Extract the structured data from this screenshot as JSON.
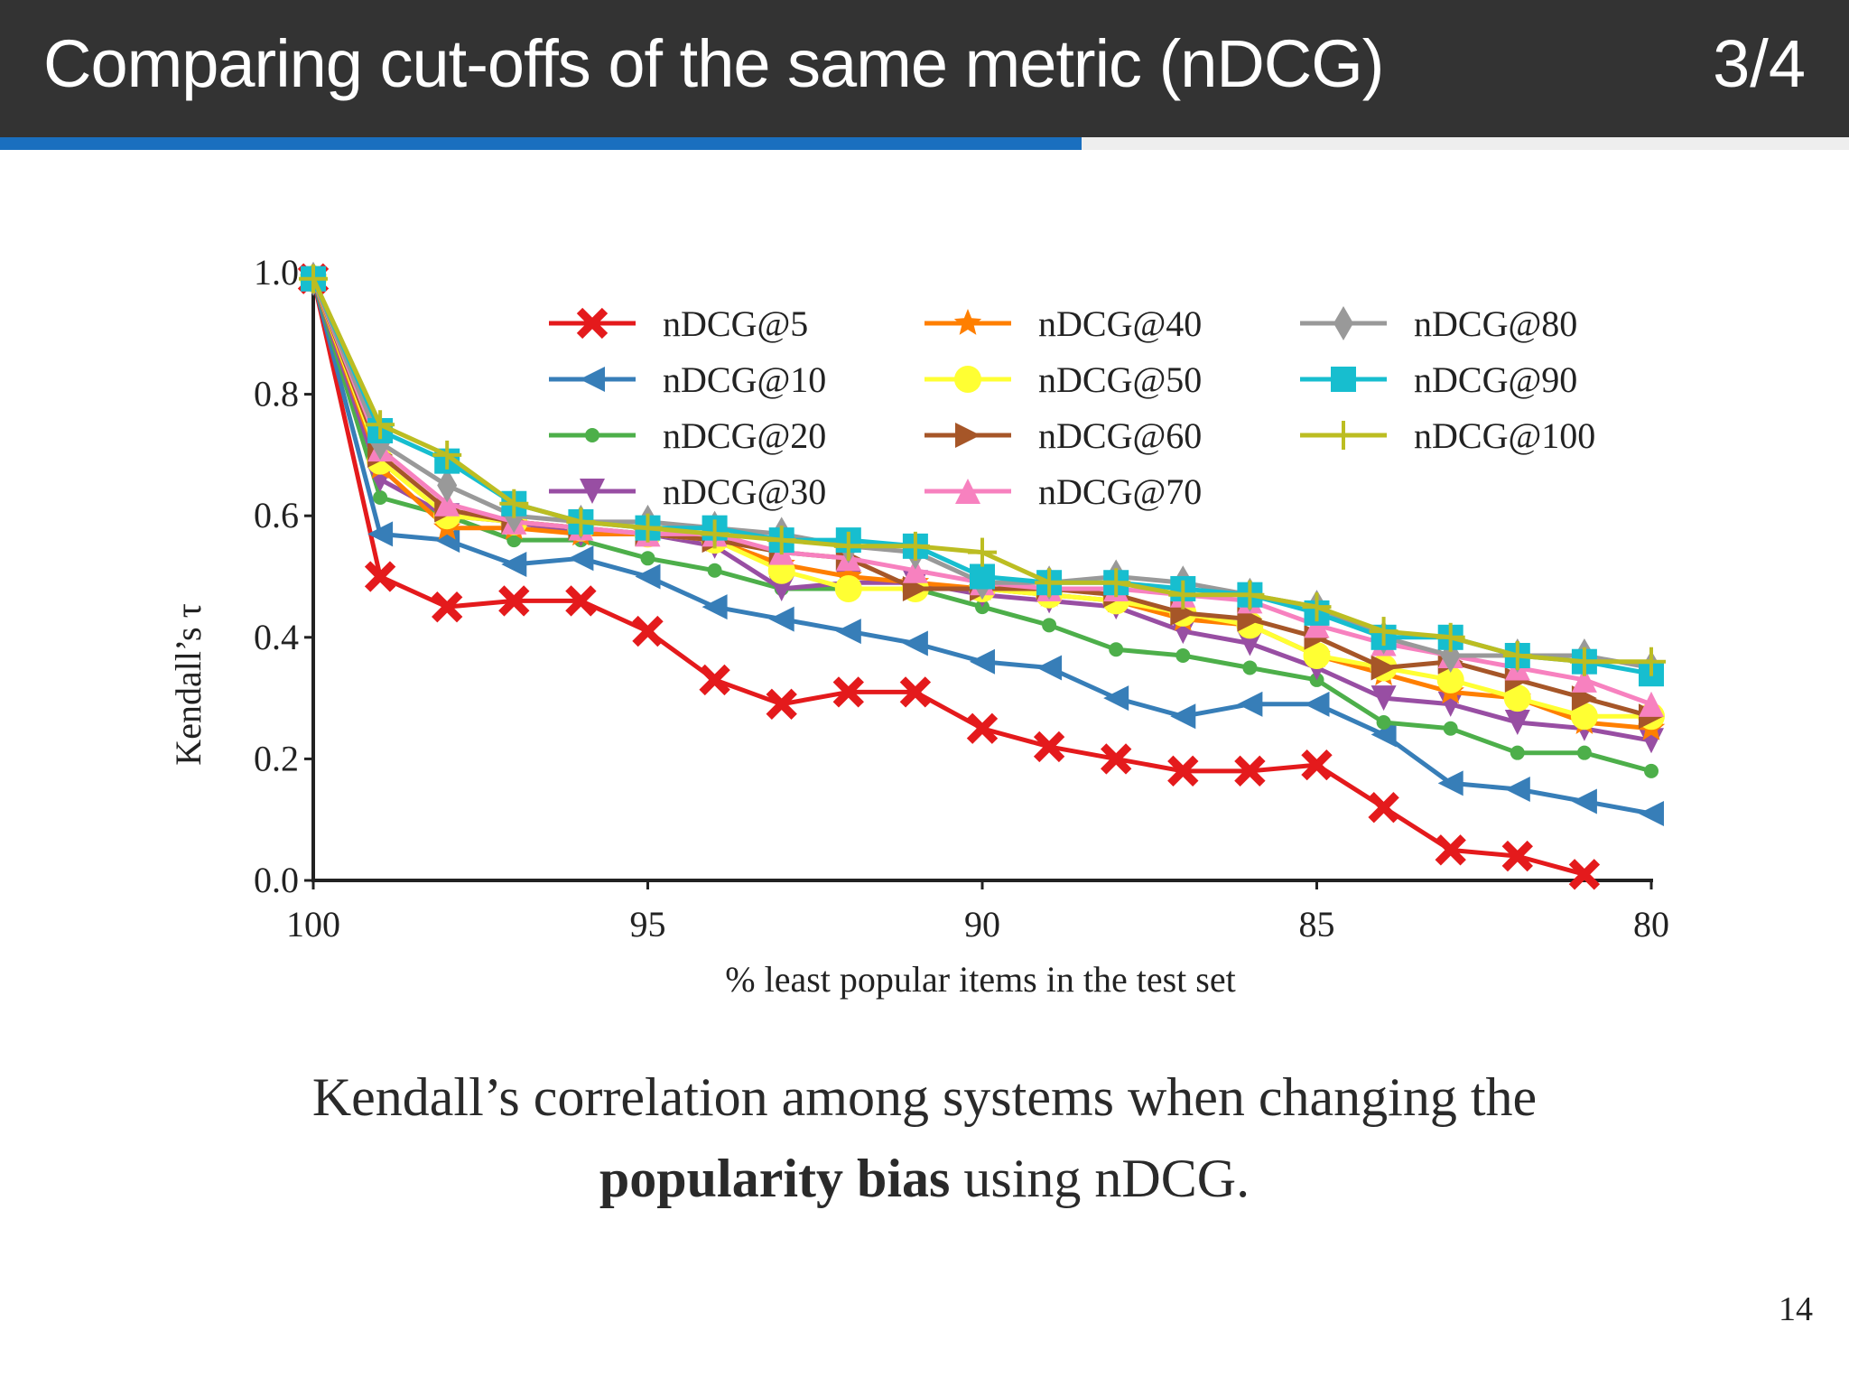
{
  "slide": {
    "title": "Comparing cut-offs of the same metric (nDCG)",
    "counter": "3/4",
    "progress_fraction": 0.585,
    "progress_color": "#1a6fbf",
    "header_bg": "#333333",
    "page_number": "14"
  },
  "caption": {
    "line1": "Kendall’s correlation among systems when changing the",
    "bold": "popularity bias",
    "rest": " using nDCG."
  },
  "chart_data": {
    "type": "line",
    "xlabel": "% least popular items in the test set",
    "ylabel": "Kendall’s τ",
    "xlim": [
      100,
      80
    ],
    "ylim": [
      0,
      1.0
    ],
    "xticks": [
      100,
      95,
      90,
      85,
      80
    ],
    "yticks": [
      0.0,
      0.2,
      0.4,
      0.6,
      0.8,
      1.0
    ],
    "ytick_labels": [
      "0.0",
      "0.2",
      "0.4",
      "0.6",
      "0.8",
      "1.0"
    ],
    "grid": false,
    "legend_position": "top-right",
    "legend_columns": 3,
    "x": [
      100,
      99,
      98,
      97,
      96,
      95,
      94,
      93,
      92,
      91,
      90,
      89,
      88,
      87,
      86,
      85,
      84,
      83,
      82,
      81,
      80
    ],
    "series": [
      {
        "name": "nDCG@5",
        "color": "#e41a1c",
        "marker": "x",
        "values": [
          0.99,
          0.5,
          0.45,
          0.46,
          0.46,
          0.41,
          0.33,
          0.29,
          0.31,
          0.31,
          0.25,
          0.22,
          0.2,
          0.18,
          0.18,
          0.19,
          0.12,
          0.05,
          0.04,
          0.01,
          null
        ]
      },
      {
        "name": "nDCG@10",
        "color": "#377eb8",
        "marker": "triangle-left",
        "values": [
          0.99,
          0.57,
          0.56,
          0.52,
          0.53,
          0.5,
          0.45,
          0.43,
          0.41,
          0.39,
          0.36,
          0.35,
          0.3,
          0.27,
          0.29,
          0.29,
          0.24,
          0.16,
          0.15,
          0.13,
          0.11
        ]
      },
      {
        "name": "nDCG@20",
        "color": "#4daf4a",
        "marker": "dot",
        "values": [
          0.99,
          0.63,
          0.6,
          0.56,
          0.56,
          0.53,
          0.51,
          0.48,
          0.48,
          0.48,
          0.45,
          0.42,
          0.38,
          0.37,
          0.35,
          0.33,
          0.26,
          0.25,
          0.21,
          0.21,
          0.18
        ]
      },
      {
        "name": "nDCG@30",
        "color": "#984ea3",
        "marker": "triangle-down",
        "values": [
          0.99,
          0.66,
          0.6,
          0.59,
          0.57,
          0.57,
          0.55,
          0.48,
          0.49,
          0.49,
          0.47,
          0.46,
          0.45,
          0.41,
          0.39,
          0.35,
          0.3,
          0.29,
          0.26,
          0.25,
          0.23
        ]
      },
      {
        "name": "nDCG@40",
        "color": "#ff7f00",
        "marker": "star",
        "values": [
          0.99,
          0.68,
          0.58,
          0.58,
          0.57,
          0.57,
          0.56,
          0.52,
          0.5,
          0.49,
          0.48,
          0.47,
          0.46,
          0.43,
          0.42,
          0.37,
          0.34,
          0.31,
          0.3,
          0.26,
          0.25
        ]
      },
      {
        "name": "nDCG@50",
        "color": "#ffff33",
        "marker": "circle",
        "values": [
          0.99,
          0.69,
          0.6,
          0.59,
          0.58,
          0.57,
          0.56,
          0.51,
          0.48,
          0.48,
          0.48,
          0.47,
          0.46,
          0.44,
          0.42,
          0.37,
          0.35,
          0.33,
          0.3,
          0.27,
          0.27
        ]
      },
      {
        "name": "nDCG@60",
        "color": "#a65628",
        "marker": "triangle-right",
        "values": [
          0.99,
          0.7,
          0.61,
          0.59,
          0.58,
          0.57,
          0.56,
          0.54,
          0.53,
          0.48,
          0.48,
          0.48,
          0.47,
          0.44,
          0.43,
          0.4,
          0.35,
          0.36,
          0.33,
          0.3,
          0.27
        ]
      },
      {
        "name": "nDCG@70",
        "color": "#f781bf",
        "marker": "triangle-up",
        "values": [
          0.99,
          0.71,
          0.62,
          0.59,
          0.58,
          0.57,
          0.57,
          0.54,
          0.53,
          0.51,
          0.49,
          0.48,
          0.48,
          0.47,
          0.46,
          0.42,
          0.39,
          0.37,
          0.35,
          0.33,
          0.29
        ]
      },
      {
        "name": "nDCG@80",
        "color": "#999999",
        "marker": "diamond",
        "values": [
          0.99,
          0.72,
          0.65,
          0.6,
          0.59,
          0.59,
          0.58,
          0.57,
          0.55,
          0.54,
          0.49,
          0.49,
          0.5,
          0.49,
          0.47,
          0.45,
          0.4,
          0.37,
          0.37,
          0.37,
          0.35
        ]
      },
      {
        "name": "nDCG@90",
        "color": "#17becf",
        "marker": "square",
        "values": [
          0.99,
          0.74,
          0.69,
          0.62,
          0.59,
          0.58,
          0.58,
          0.56,
          0.56,
          0.55,
          0.5,
          0.49,
          0.49,
          0.48,
          0.47,
          0.44,
          0.4,
          0.4,
          0.37,
          0.36,
          0.34
        ]
      },
      {
        "name": "nDCG@100",
        "color": "#bcbd22",
        "marker": "plus",
        "values": [
          0.99,
          0.75,
          0.7,
          0.62,
          0.59,
          0.58,
          0.57,
          0.56,
          0.55,
          0.55,
          0.54,
          0.49,
          0.49,
          0.47,
          0.47,
          0.45,
          0.41,
          0.4,
          0.37,
          0.36,
          0.36
        ]
      }
    ]
  }
}
